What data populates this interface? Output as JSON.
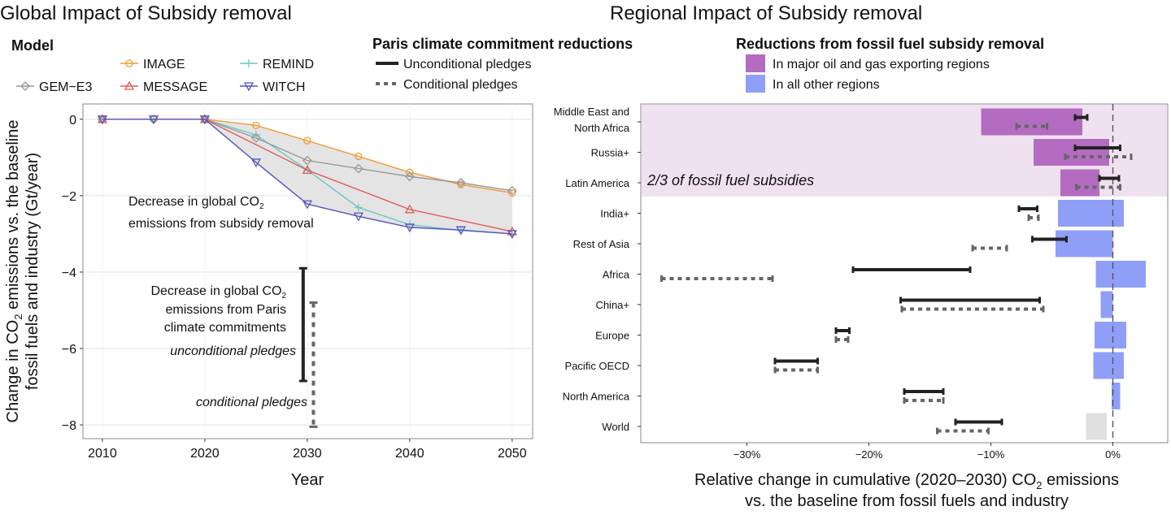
{
  "chart_data": [
    {
      "type": "line",
      "title": "Global Impact of Subsidy removal",
      "xlabel": "Year",
      "ylabel": [
        "Change in CO",
        "2",
        " emissions vs. the baseline",
        "fossil fuels and industry (Gt/year)"
      ],
      "xlim": [
        2008.1,
        2052
      ],
      "ylim": [
        -8.36,
        0.4
      ],
      "xticks": [
        2010,
        2020,
        2030,
        2040,
        2050
      ],
      "xtick_labels": [
        "2010",
        "2020",
        "2030",
        "2040",
        "2050"
      ],
      "yticks": [
        0,
        -2,
        -4,
        -6,
        -8
      ],
      "ytick_labels": [
        "0",
        "−2",
        "−4",
        "−6",
        "−8"
      ],
      "grid": true,
      "legend_title": "Model",
      "series": [
        {
          "name": "IMAGE",
          "color": "#f39c35",
          "marker": "circle",
          "x": [
            2010,
            2015,
            2020,
            2025,
            2030,
            2035,
            2040,
            2045,
            2050
          ],
          "y": [
            0,
            0,
            0,
            -0.16,
            -0.56,
            -0.97,
            -1.39,
            -1.71,
            -1.93
          ]
        },
        {
          "name": "REMIND",
          "color": "#6cc6c6",
          "marker": "plus",
          "x": [
            2010,
            2015,
            2020,
            2025,
            2030,
            2035,
            2040,
            2045,
            2050
          ],
          "y": [
            0,
            0,
            0,
            -0.41,
            -1.33,
            -2.31,
            -2.76,
            -2.91,
            -3.0
          ]
        },
        {
          "name": "GEM−E3",
          "color": "#999999",
          "marker": "diamond",
          "x": [
            2010,
            2015,
            2020,
            2025,
            2030,
            2035,
            2040,
            2045,
            2050
          ],
          "y": [
            0,
            0,
            0,
            -0.49,
            -1.08,
            -1.29,
            -1.5,
            -1.66,
            -1.87
          ]
        },
        {
          "name": "MESSAGE",
          "color": "#e05a5a",
          "marker": "triangle-up",
          "x": [
            2010,
            2020,
            2030,
            2040,
            2050
          ],
          "y": [
            0,
            0,
            -1.33,
            -2.36,
            -2.94
          ]
        },
        {
          "name": "WITCH",
          "color": "#5555bb",
          "marker": "triangle-down",
          "x": [
            2010,
            2015,
            2020,
            2025,
            2030,
            2035,
            2040,
            2045,
            2050
          ],
          "y": [
            0,
            0,
            0,
            -1.13,
            -2.22,
            -2.54,
            -2.83,
            -2.9,
            -3.0
          ]
        }
      ],
      "paris_legend_title": "Paris climate commitment reductions",
      "paris": [
        {
          "name": "Unconditional pledges",
          "style": "solid",
          "color": "#222222",
          "x": 2029.6,
          "range": [
            -3.9,
            -6.85
          ]
        },
        {
          "name": "Conditional pledges",
          "style": "dashed",
          "color": "#666666",
          "x": 2030.6,
          "range": [
            -4.8,
            -8.05
          ]
        }
      ],
      "annotations": {
        "subsidy": [
          "Decrease in global CO",
          "2",
          "emissions from subsidy removal"
        ],
        "paris": [
          "Decrease in global CO",
          "2",
          "emissions from Paris",
          "climate commitments"
        ],
        "unconditional": "unconditional pledges",
        "conditional": "conditional pledges"
      }
    },
    {
      "type": "bar",
      "orientation": "horizontal",
      "title": "Regional Impact of Subsidy removal",
      "xlabel": [
        "Relative change in cumulative (2020–2030) CO",
        "2",
        " emissions",
        "vs. the baseline from fossil fuels and industry"
      ],
      "xlim": [
        -38.7,
        4.5
      ],
      "xticks": [
        -30,
        -20,
        -10,
        0
      ],
      "xtick_labels": [
        "−30%",
        "−20%",
        "−10%",
        "0%"
      ],
      "legend_title": "Reductions from fossil fuel subsidy removal",
      "legend": [
        {
          "label": "In major oil and gas exporting regions",
          "color": "#b36cc0"
        },
        {
          "label": "In all other regions",
          "color": "#8f9ff8"
        }
      ],
      "highlight": {
        "label": "2/3 of fossil fuel subsidies",
        "color": "#f0e1f0",
        "regions": [
          "Middle East and North Africa",
          "Russia+",
          "Latin America"
        ]
      },
      "world_color": "#e0e0e0",
      "regions": [
        {
          "name": [
            "Middle East and",
            "North Africa"
          ],
          "group": "oil",
          "bar": [
            -10.8,
            -2.5
          ],
          "unconditional": [
            -3.1,
            -2.1
          ],
          "conditional": [
            -7.9,
            -5.4
          ]
        },
        {
          "name": [
            "Russia+"
          ],
          "group": "oil",
          "bar": [
            -6.5,
            -0.3
          ],
          "unconditional": [
            -3.1,
            0.6
          ],
          "conditional": [
            -3.9,
            1.5
          ]
        },
        {
          "name": [
            "Latin America"
          ],
          "group": "oil",
          "bar": [
            -4.3,
            -1.1
          ],
          "unconditional": [
            -1.1,
            0.5
          ],
          "conditional": [
            -3.0,
            0.6
          ]
        },
        {
          "name": [
            "India+"
          ],
          "group": "other",
          "bar": [
            -4.5,
            0.9
          ],
          "unconditional": [
            -7.7,
            -6.2
          ],
          "conditional": [
            -6.9,
            -6.1
          ]
        },
        {
          "name": [
            "Rest of Asia"
          ],
          "group": "other",
          "bar": [
            -4.7,
            0
          ],
          "unconditional": [
            -6.6,
            -3.8
          ],
          "conditional": [
            -11.5,
            -8.7
          ]
        },
        {
          "name": [
            "Africa"
          ],
          "group": "other",
          "bar": [
            -1.4,
            2.7
          ],
          "unconditional": [
            -21.3,
            -11.7
          ],
          "conditional": [
            -37.0,
            -27.9
          ]
        },
        {
          "name": [
            "China+"
          ],
          "group": "other",
          "bar": [
            -1.0,
            0
          ],
          "unconditional": [
            -17.4,
            -6.0
          ],
          "conditional": [
            -17.3,
            -5.7
          ]
        },
        {
          "name": [
            "Europe"
          ],
          "group": "other",
          "bar": [
            -1.5,
            1.1
          ],
          "unconditional": [
            -22.7,
            -21.6
          ],
          "conditional": [
            -22.7,
            -21.7
          ]
        },
        {
          "name": [
            "Pacific OECD"
          ],
          "group": "other",
          "bar": [
            -1.6,
            0.9
          ],
          "unconditional": [
            -27.7,
            -24.2
          ],
          "conditional": [
            -27.7,
            -24.2
          ]
        },
        {
          "name": [
            "North America"
          ],
          "group": "other",
          "bar": [
            -0.1,
            0.6
          ],
          "unconditional": [
            -17.1,
            -13.9
          ],
          "conditional": [
            -17.1,
            -13.9
          ]
        },
        {
          "name": [
            "World"
          ],
          "group": "world",
          "bar": [
            -2.2,
            -0.5
          ],
          "unconditional": [
            -12.9,
            -9.1
          ],
          "conditional": [
            -14.4,
            -10.2
          ]
        }
      ]
    }
  ]
}
